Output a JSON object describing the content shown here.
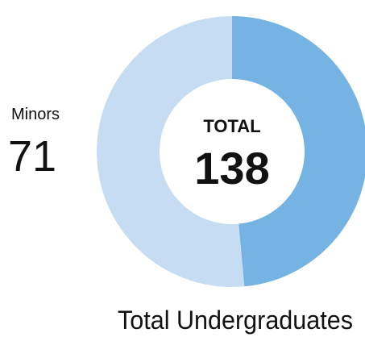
{
  "chart_data": {
    "type": "donut",
    "title": "Total Undergraduates",
    "center_label": "TOTAL",
    "total": 138,
    "categories": [
      null,
      "Minors"
    ],
    "values": [
      67,
      71
    ],
    "colors": [
      "#74b3e2",
      "#c6dcf2"
    ]
  }
}
